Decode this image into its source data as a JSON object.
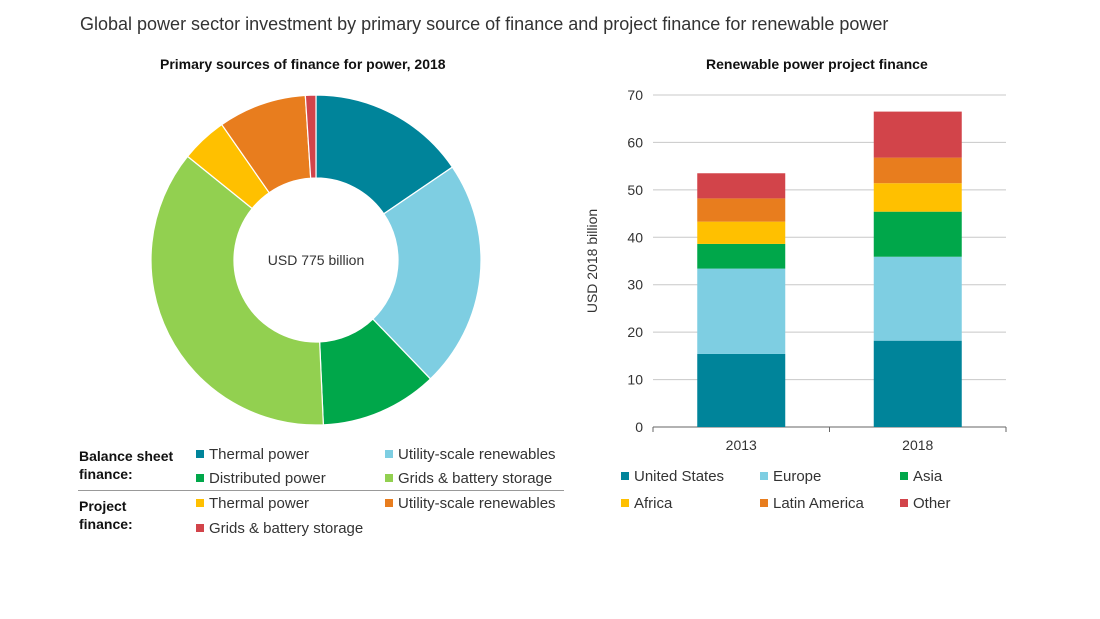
{
  "title": "Global power sector investment by primary source of finance and project finance for renewable power",
  "chart_data": [
    {
      "type": "pie",
      "title": "Primary sources of finance for power, 2018",
      "center_label": "USD 775 billion",
      "legend_groups": [
        {
          "label": [
            "Balance sheet",
            "finance:"
          ],
          "items": [
            {
              "name": "Thermal power",
              "color": "#00849a"
            },
            {
              "name": "Utility-scale renewables",
              "color": "#7ecee2"
            },
            {
              "name": "Distributed power",
              "color": "#00a74a"
            },
            {
              "name": "Grids & battery storage",
              "color": "#92d050"
            }
          ]
        },
        {
          "label": [
            "Project",
            "finance:"
          ],
          "items": [
            {
              "name": "Thermal power",
              "color": "#ffc000"
            },
            {
              "name": "Utility-scale renewables",
              "color": "#e87d1e"
            },
            {
              "name": "Grids & battery storage",
              "color": "#d2444a"
            }
          ]
        }
      ],
      "slices": [
        {
          "group": "Balance sheet finance",
          "label": "Thermal power",
          "value": 120,
          "color": "#00849a"
        },
        {
          "group": "Balance sheet finance",
          "label": "Utility-scale renewables",
          "value": 173,
          "color": "#7ecee2"
        },
        {
          "group": "Balance sheet finance",
          "label": "Distributed power",
          "value": 89,
          "color": "#00a74a"
        },
        {
          "group": "Balance sheet finance",
          "label": "Grids & battery storage",
          "value": 283,
          "color": "#92d050"
        },
        {
          "group": "Project finance",
          "label": "Thermal power",
          "value": 35,
          "color": "#ffc000"
        },
        {
          "group": "Project finance",
          "label": "Utility-scale renewables",
          "value": 67,
          "color": "#e87d1e"
        },
        {
          "group": "Project finance",
          "label": "Grids & battery storage",
          "value": 8,
          "color": "#d2444a"
        }
      ]
    },
    {
      "type": "bar",
      "stacked": true,
      "title": "Renewable power project finance",
      "ylabel": "USD 2018 billion",
      "ylim": [
        0,
        70
      ],
      "yticks": [
        0,
        10,
        20,
        30,
        40,
        50,
        60,
        70
      ],
      "grid": true,
      "categories": [
        "2013",
        "2018"
      ],
      "series": [
        {
          "name": "United States",
          "color": "#00849a",
          "values": [
            15.4,
            18.2
          ]
        },
        {
          "name": "Europe",
          "color": "#7ecee2",
          "values": [
            18.0,
            17.7
          ]
        },
        {
          "name": "Asia",
          "color": "#00a74a",
          "values": [
            5.2,
            9.5
          ]
        },
        {
          "name": "Africa",
          "color": "#ffc000",
          "values": [
            4.7,
            6.0
          ]
        },
        {
          "name": "Latin America",
          "color": "#e87d1e",
          "values": [
            4.9,
            5.4
          ]
        },
        {
          "name": "Other",
          "color": "#d2444a",
          "values": [
            5.3,
            9.7
          ]
        }
      ]
    }
  ]
}
